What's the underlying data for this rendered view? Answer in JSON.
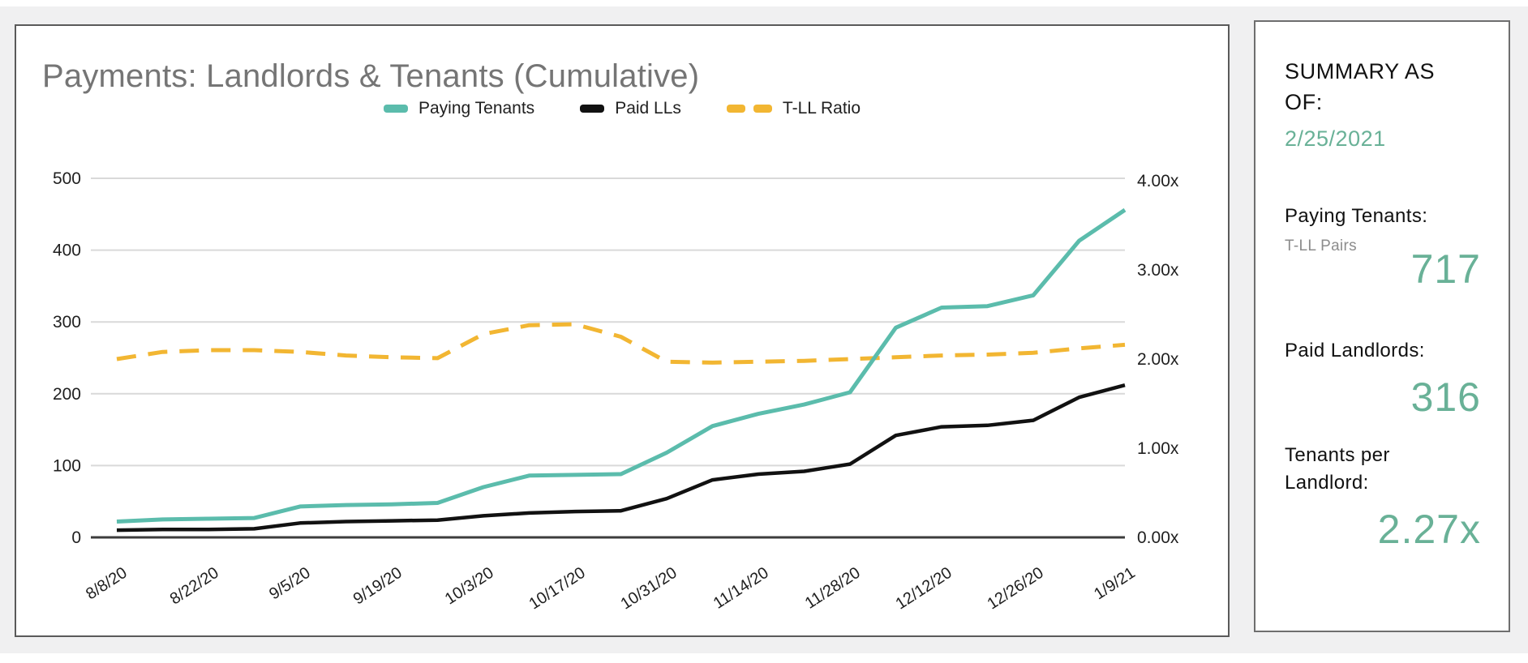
{
  "colors": {
    "background": "#f0f0f1",
    "card_border": "#5a5a5a",
    "title_gray": "#757575",
    "axis_text": "#1f1f1f",
    "gridline": "#d9d9d9",
    "baseline": "#3c3c3c",
    "teal_line": "#5bbcac",
    "black_line": "#111111",
    "gold_line": "#f2b632",
    "summary_green": "#69b197"
  },
  "chart_data": {
    "type": "line",
    "title": "Payments: Landlords & Tenants (Cumulative)",
    "x_labels": [
      "8/8/20",
      "8/22/20",
      "9/5/20",
      "9/19/20",
      "10/3/20",
      "10/17/20",
      "10/31/20",
      "11/14/20",
      "11/28/20",
      "12/12/20",
      "12/26/20",
      "1/9/21"
    ],
    "label_every_n_points": 2,
    "n_points": 23,
    "left_axis": {
      "ticks": [
        0,
        100,
        200,
        300,
        400,
        500
      ],
      "range": [
        0,
        500
      ]
    },
    "right_axis": {
      "ticks": [
        "0.00x",
        "1.00x",
        "2.00x",
        "3.00x",
        "4.00x"
      ],
      "range": [
        0,
        4
      ]
    },
    "grid": "horizontal-only",
    "legend_position": "top-center",
    "series": [
      {
        "name": "Paying Tenants",
        "axis": "left",
        "style": "solid",
        "color": "#5bbcac",
        "width": 5,
        "values": [
          22,
          25,
          26,
          27,
          43,
          45,
          46,
          48,
          70,
          86,
          87,
          88,
          118,
          155,
          172,
          185,
          202,
          292,
          320,
          322,
          337,
          413,
          456
        ]
      },
      {
        "name": "Paid LLs",
        "axis": "left",
        "style": "solid",
        "color": "#111111",
        "width": 4.5,
        "values": [
          10,
          11,
          11,
          12,
          20,
          22,
          23,
          24,
          30,
          34,
          36,
          37,
          54,
          80,
          88,
          92,
          102,
          142,
          154,
          156,
          163,
          195,
          212
        ]
      },
      {
        "name": "T-LL Ratio",
        "axis": "right",
        "style": "dashed",
        "color": "#f2b632",
        "width": 5,
        "values": [
          2.0,
          2.08,
          2.1,
          2.1,
          2.08,
          2.04,
          2.02,
          2.01,
          2.28,
          2.38,
          2.39,
          2.25,
          1.97,
          1.96,
          1.97,
          1.98,
          2.0,
          2.02,
          2.04,
          2.05,
          2.07,
          2.12,
          2.16
        ]
      }
    ]
  },
  "summary": {
    "heading": "SUMMARY AS OF:",
    "date": "2/25/2021",
    "paying_tenants_label": "Paying Tenants:",
    "pairs_sublabel": "T-LL Pairs",
    "paying_tenants_value": "717",
    "paid_landlords_label": "Paid Landlords:",
    "paid_landlords_value": "316",
    "tenants_per_landlord_label": "Tenants per Landlord:",
    "ratio_value": "2.27x"
  }
}
